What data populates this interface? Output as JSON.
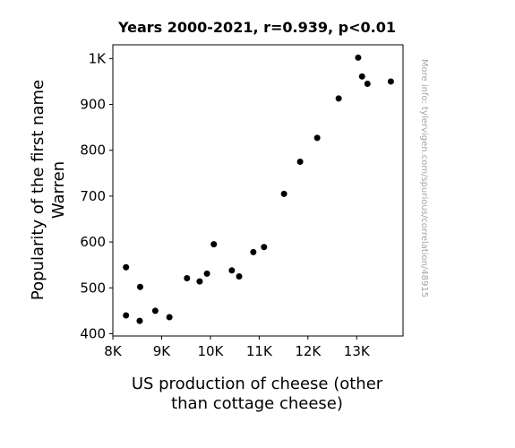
{
  "chart_data": {
    "type": "scatter",
    "title": "Years 2000-2021, r=0.939, p<0.01",
    "xlabel_lines": [
      "US production of cheese (other",
      "than cottage cheese)"
    ],
    "ylabel_lines": [
      "Popularity of the first name",
      "Warren"
    ],
    "side_note": "More info: tylervigen.com/spurious/correlation/48915",
    "xlim": [
      8000,
      13950
    ],
    "ylim": [
      395,
      1030
    ],
    "x_ticks": [
      {
        "value": 8000,
        "label": "8K"
      },
      {
        "value": 9000,
        "label": "9K"
      },
      {
        "value": 10000,
        "label": "10K"
      },
      {
        "value": 11000,
        "label": "11K"
      },
      {
        "value": 12000,
        "label": "12K"
      },
      {
        "value": 13000,
        "label": "13K"
      }
    ],
    "y_ticks": [
      {
        "value": 400,
        "label": "400"
      },
      {
        "value": 500,
        "label": "500"
      },
      {
        "value": 600,
        "label": "600"
      },
      {
        "value": 700,
        "label": "700"
      },
      {
        "value": 800,
        "label": "800"
      },
      {
        "value": 900,
        "label": "900"
      },
      {
        "value": 1000,
        "label": "1K"
      }
    ],
    "grid": false,
    "point_color": "#000000",
    "points": [
      {
        "x": 8270,
        "y": 545
      },
      {
        "x": 8270,
        "y": 440
      },
      {
        "x": 8550,
        "y": 428
      },
      {
        "x": 8560,
        "y": 502
      },
      {
        "x": 8870,
        "y": 450
      },
      {
        "x": 9160,
        "y": 436
      },
      {
        "x": 9520,
        "y": 521
      },
      {
        "x": 9780,
        "y": 514
      },
      {
        "x": 9930,
        "y": 531
      },
      {
        "x": 10070,
        "y": 595
      },
      {
        "x": 10440,
        "y": 538
      },
      {
        "x": 10590,
        "y": 525
      },
      {
        "x": 10880,
        "y": 578
      },
      {
        "x": 11100,
        "y": 589
      },
      {
        "x": 11510,
        "y": 705
      },
      {
        "x": 11840,
        "y": 775
      },
      {
        "x": 12190,
        "y": 827
      },
      {
        "x": 12630,
        "y": 913
      },
      {
        "x": 13030,
        "y": 1002
      },
      {
        "x": 13110,
        "y": 961
      },
      {
        "x": 13220,
        "y": 945
      },
      {
        "x": 13700,
        "y": 950
      }
    ]
  }
}
